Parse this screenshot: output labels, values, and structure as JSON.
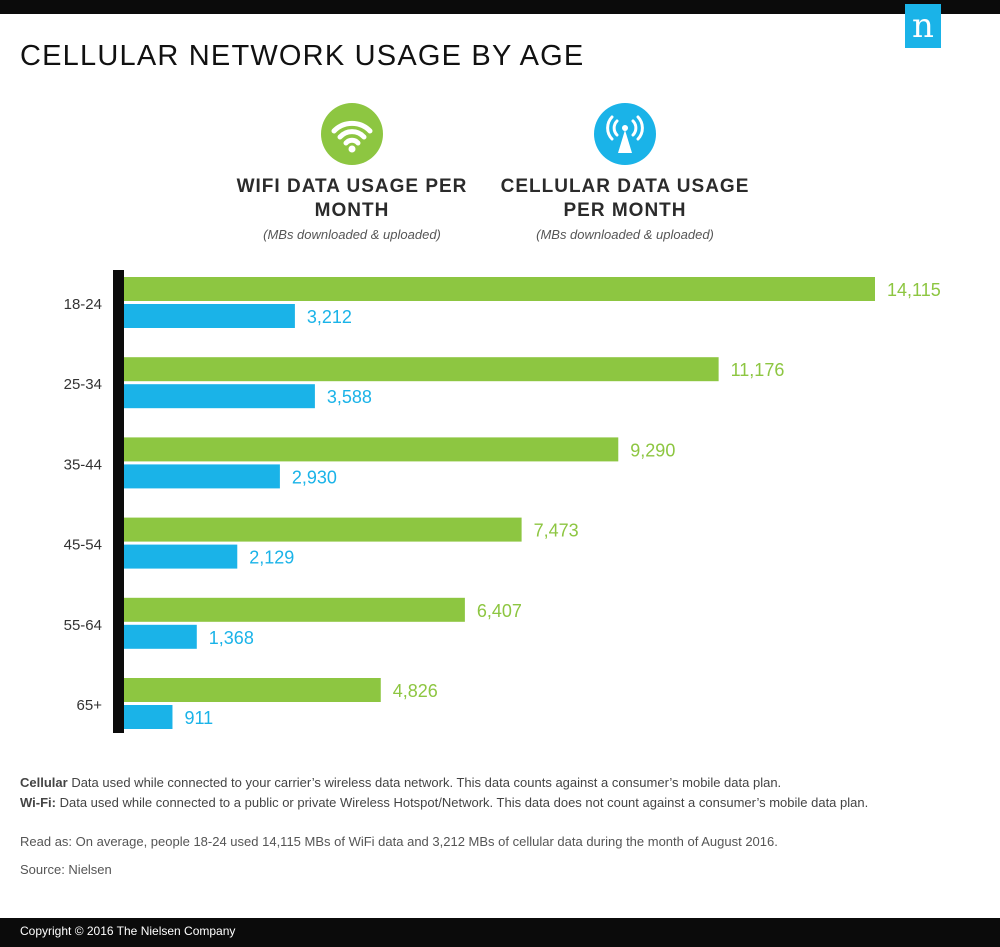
{
  "title": "CELLULAR NETWORK USAGE BY AGE",
  "brand": {
    "logo_letter": "n",
    "color": "#1ab3e8"
  },
  "legend": {
    "wifi": {
      "icon": "wifi-icon",
      "label": "WIFI DATA USAGE PER MONTH",
      "note": "(MBs downloaded & uploaded)",
      "color": "#8dc641"
    },
    "cellular": {
      "icon": "cell-tower-icon",
      "label": "CELLULAR DATA USAGE PER MONTH",
      "note": "(MBs downloaded & uploaded)",
      "color": "#1ab3e8"
    }
  },
  "chart_data": {
    "type": "bar",
    "orientation": "horizontal",
    "categories": [
      "18-24",
      "25-34",
      "35-44",
      "45-54",
      "55-64",
      "65+"
    ],
    "series": [
      {
        "name": "WIFI DATA USAGE PER MONTH",
        "color": "#8dc641",
        "values": [
          14115,
          11176,
          9290,
          7473,
          6407,
          4826
        ],
        "labels": [
          "14,115",
          "11,176",
          "9,290",
          "7,473",
          "6,407",
          "4,826"
        ]
      },
      {
        "name": "CELLULAR DATA USAGE PER MONTH",
        "color": "#1ab3e8",
        "values": [
          3212,
          3588,
          2930,
          2129,
          1368,
          911
        ],
        "labels": [
          "3,212",
          "3,588",
          "2,930",
          "2,129",
          "1,368",
          "911"
        ]
      }
    ],
    "xlim": [
      0,
      14115
    ],
    "grid": false,
    "legend_position": "top"
  },
  "footnotes": {
    "cellular_term": "Cellular",
    "cellular_text": "Data used while connected to your carrier’s wireless data network. This data counts against a consumer’s mobile data plan.",
    "wifi_term": "Wi-Fi:",
    "wifi_text": "Data used while connected to a public or private Wireless Hotspot/Network. This data does not count against a consumer’s mobile data plan."
  },
  "read_as": "Read as: On average, people 18-24 used 14,115 MBs of WiFi data and 3,212 MBs of cellular data during the month of August 2016.",
  "source": "Source: Nielsen",
  "copyright": "Copyright © 2016 The Nielsen Company"
}
